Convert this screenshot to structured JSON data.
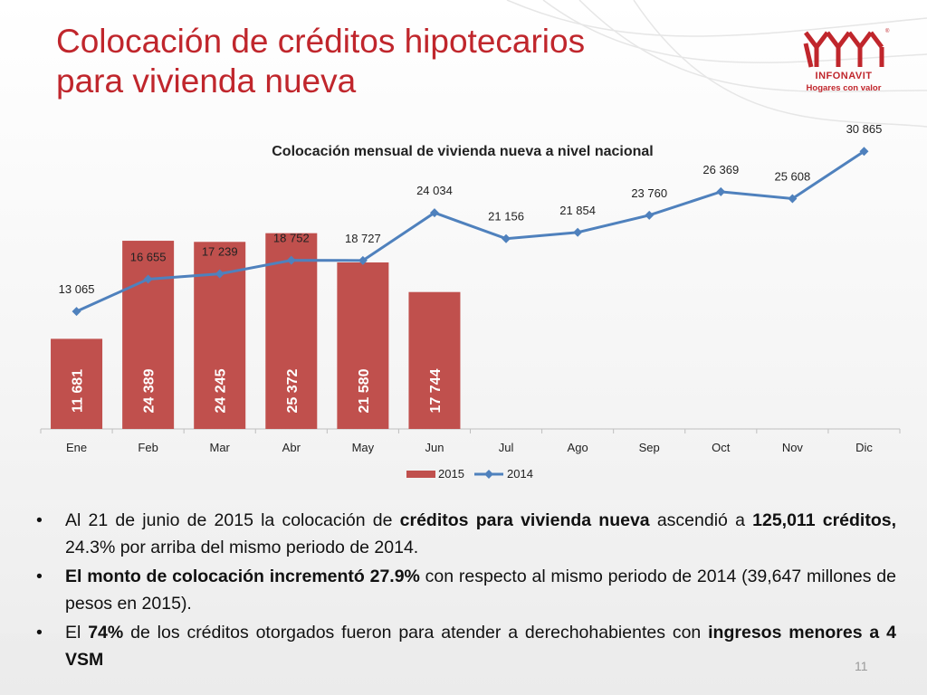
{
  "slide": {
    "title_line1": "Colocación de créditos hipotecarios",
    "title_line2": "para vivienda nueva",
    "page_number": "11"
  },
  "logo": {
    "name": "INFONAVIT",
    "tagline": "Hogares con valor",
    "color": "#c0262c"
  },
  "colors": {
    "title": "#c0262c",
    "bar_2015": "#c0504d",
    "line_2014": "#4f81bd"
  },
  "chart_data": {
    "type": "bar",
    "title": "Colocación mensual de vivienda nueva a nivel nacional",
    "categories": [
      "Ene",
      "Feb",
      "Mar",
      "Abr",
      "May",
      "Jun",
      "Jul",
      "Ago",
      "Sep",
      "Oct",
      "Nov",
      "Dic"
    ],
    "series": [
      {
        "name": "2015",
        "type": "bar",
        "color": "#c0504d",
        "values": [
          11681,
          24389,
          24245,
          25372,
          21580,
          17744,
          null,
          null,
          null,
          null,
          null,
          null
        ],
        "labels": [
          "11 681",
          "24 389",
          "24 245",
          "25 372",
          "21 580",
          "17 744"
        ]
      },
      {
        "name": "2014",
        "type": "line",
        "color": "#4f81bd",
        "values": [
          13065,
          16655,
          17239,
          18752,
          18727,
          24034,
          21156,
          21854,
          23760,
          26369,
          25608,
          30865
        ],
        "labels": [
          "13 065",
          "16 655",
          "17 239",
          "18 752",
          "18 727",
          "24 034",
          "21 156",
          "21 854",
          "23 760",
          "26 369",
          "25 608",
          "30 865"
        ]
      }
    ],
    "bar_scale_max": 28500,
    "line_scale": [
      0,
      33500
    ],
    "legend_position": "bottom",
    "grid": false
  },
  "bullets": [
    {
      "runs": [
        {
          "text": "Al 21 de junio de 2015 la colocación de ",
          "bold": false
        },
        {
          "text": "créditos para vivienda nueva",
          "bold": true
        },
        {
          "text": " ascendió a ",
          "bold": false
        },
        {
          "text": "125,011 créditos,",
          "bold": true
        },
        {
          "text": " 24.3% por arriba del mismo periodo de 2014.",
          "bold": false
        }
      ]
    },
    {
      "runs": [
        {
          "text": "El monto de colocación incrementó 27.9%",
          "bold": true
        },
        {
          "text": " con respecto al mismo periodo de 2014 (39,647 millones de pesos en 2015).",
          "bold": false
        }
      ]
    },
    {
      "runs": [
        {
          "text": "El ",
          "bold": false
        },
        {
          "text": "74%",
          "bold": true
        },
        {
          "text": " de los créditos otorgados fueron para atender a derechohabientes con ",
          "bold": false
        },
        {
          "text": "ingresos menores a 4 VSM",
          "bold": true
        }
      ]
    }
  ],
  "bullet_symbol": "•"
}
